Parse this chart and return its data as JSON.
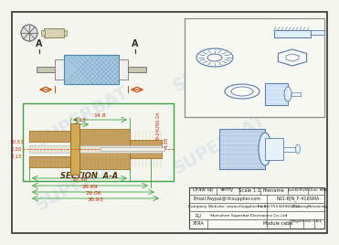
{
  "bg_color": "#f5f5f0",
  "watermark": "SUPERBAT",
  "section_label": "SECTION  A-A",
  "dims": {
    "d1": "14.8",
    "d2": "4.13",
    "d3": "4.38",
    "d4": "18.58",
    "d5": "26.69",
    "d6": "29.06",
    "d7": "36.93",
    "d8": "5/8-24UNS-2A",
    "left_dims": [
      "10.51",
      "2.20",
      "2.13"
    ]
  },
  "colors": {
    "border_color": "#333333",
    "main_body_fill": "#c8a060",
    "blue_fill": "#a8c8e0",
    "green_outline": "#40a040",
    "dim_line": "#cc4400",
    "dim_text": "#cc2200",
    "iso_line": "#5577aa",
    "title_watermark": "#bbccdd"
  }
}
